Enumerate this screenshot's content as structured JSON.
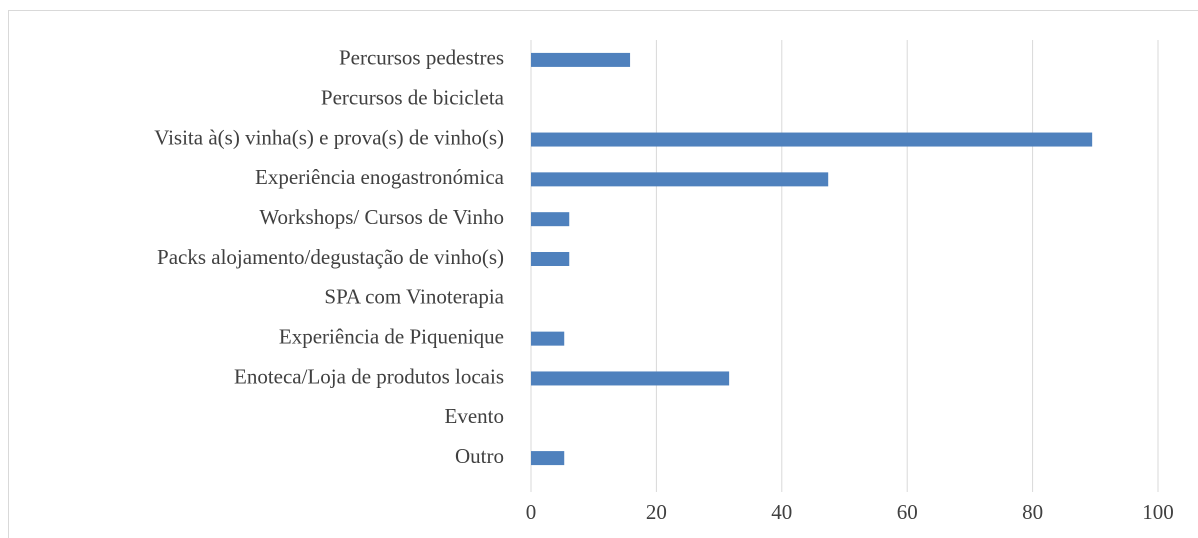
{
  "chart_data": {
    "type": "bar",
    "orientation": "horizontal",
    "categories": [
      "Percursos pedestres",
      "Percursos de bicicleta",
      "Visita à(s) vinha(s) e prova(s) de vinho(s)",
      "Experiência enogastronómica",
      "Workshops/ Cursos de Vinho",
      "Packs alojamento/degustação de vinho(s)",
      "SPA com Vinoterapia",
      "Experiência de Piquenique",
      "Enoteca/Loja de produtos locais",
      "Evento",
      "Outro"
    ],
    "values": [
      15.8,
      0,
      89.5,
      47.4,
      6.1,
      6.1,
      0,
      5.3,
      31.6,
      0,
      5.3
    ],
    "color": "#4f81bd",
    "xlim": [
      0,
      100
    ],
    "xticks": [
      0,
      20,
      40,
      60,
      80,
      100
    ],
    "grid": true
  }
}
